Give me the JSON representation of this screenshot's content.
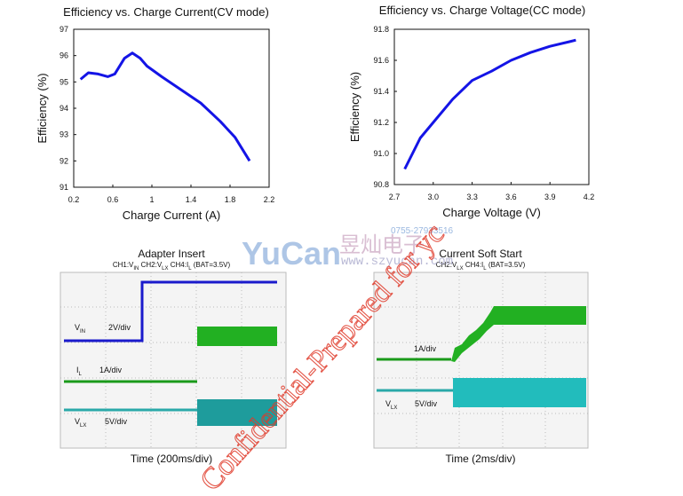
{
  "chart_data": [
    {
      "type": "line",
      "title": "Efficiency vs. Charge Current(CV mode)",
      "xlabel": "Charge Current (A)",
      "ylabel": "Efficiency (%)",
      "x": [
        0.27,
        0.35,
        0.45,
        0.55,
        0.62,
        0.72,
        0.8,
        0.88,
        0.95,
        1.1,
        1.3,
        1.5,
        1.7,
        1.85,
        2.0
      ],
      "values": [
        95.1,
        95.35,
        95.3,
        95.2,
        95.3,
        95.9,
        96.1,
        95.9,
        95.6,
        95.2,
        94.7,
        94.2,
        93.5,
        92.9,
        92.0
      ],
      "color": "#1414e6",
      "xlim": [
        0.2,
        2.2
      ],
      "xticks": [
        0.2,
        0.6,
        1,
        1.4,
        1.8,
        2.2
      ],
      "ylim": [
        91,
        97
      ],
      "yticks": [
        91,
        92,
        93,
        94,
        95,
        96,
        97
      ]
    },
    {
      "type": "line",
      "title": "Efficiency vs. Charge Voltage(CC mode)",
      "xlabel": "Charge Voltage (V)",
      "ylabel": "Efficiency (%)",
      "x": [
        2.78,
        2.9,
        3.0,
        3.15,
        3.3,
        3.45,
        3.6,
        3.75,
        3.9,
        4.05,
        4.1
      ],
      "values": [
        90.9,
        91.1,
        91.2,
        91.35,
        91.47,
        91.53,
        91.6,
        91.65,
        91.69,
        91.72,
        91.73
      ],
      "color": "#1414e6",
      "xlim": [
        2.7,
        4.2
      ],
      "xticks": [
        2.7,
        {
          "value": 3,
          "label": "3.0"
        },
        3.3,
        3.6,
        3.9,
        4.2
      ],
      "ylim": [
        90.8,
        91.8
      ],
      "yticks": [
        90.8,
        {
          "value": 91,
          "label": "91.0"
        },
        91.2,
        91.4,
        91.6,
        91.8
      ]
    }
  ],
  "scopes": [
    {
      "title": "Adapter Insert",
      "subtitle": [
        {
          "text": "CH1:V",
          "sub": "IN"
        },
        {
          "text": " CH2:V",
          "sub": "LX"
        },
        {
          "text": " CH4:I",
          "sub": "L"
        },
        {
          "text": " (BAT=3.5V)"
        }
      ],
      "channels": [
        {
          "text": "V",
          "sub": "IN",
          "scale": "2V/div"
        },
        {
          "text": "I",
          "sub": "L",
          "scale": "1A/div"
        },
        {
          "text": "V",
          "sub": "LX",
          "scale": "5V/div"
        }
      ],
      "time": "Time (200ms/div)"
    },
    {
      "title": "Current Soft Start",
      "subtitle": [
        {
          "text": "CH2:V",
          "sub": "LX"
        },
        {
          "text": " CH4:I",
          "sub": "L"
        },
        {
          "text": " (BAT=3.5V)"
        }
      ],
      "channels": [
        {
          "scale": "1A/div"
        },
        {
          "text": "V",
          "sub": "LX",
          "scale": "5V/div"
        }
      ],
      "time": "Time (2ms/div)"
    }
  ],
  "watermark": {
    "brand": "YuCan",
    "chinese": "昱灿电子",
    "phone": "0755-27933516",
    "url": "www.szyucan.com",
    "confidential": "Confidential-Prepared for yc"
  }
}
